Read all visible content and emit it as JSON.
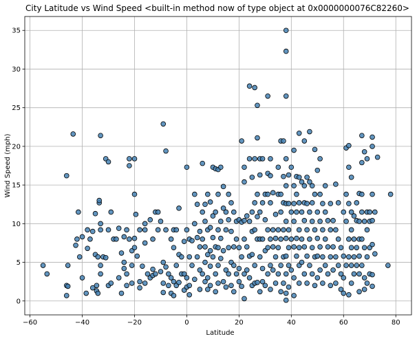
{
  "chart_data": {
    "type": "scatter",
    "title": "City Latitude vs Wind Speed <built-in method now of type object at 0x0000000076C82260>",
    "xlabel": "Latitude",
    "ylabel": "Wind Speed (mph)",
    "xlim": [
      -62,
      86
    ],
    "ylim": [
      -1.8,
      36.8
    ],
    "xticks": [
      -60,
      -40,
      -20,
      0,
      20,
      40,
      60,
      80
    ],
    "yticks": [
      0,
      5,
      10,
      15,
      20,
      25,
      30,
      35
    ],
    "grid": true,
    "marker_color": "#4682b4",
    "marker_edge_color": "#000000",
    "points": [
      [
        -55,
        4.6
      ],
      [
        -53.5,
        3.5
      ],
      [
        -46,
        16.2
      ],
      [
        -46,
        2
      ],
      [
        -45.5,
        4.6
      ],
      [
        -46,
        0.7
      ],
      [
        -45.5,
        1.9
      ],
      [
        -43.5,
        21.6
      ],
      [
        -42.5,
        7.2
      ],
      [
        -42,
        8
      ],
      [
        -41.5,
        11.5
      ],
      [
        -41,
        5.7
      ],
      [
        -40,
        8.3
      ],
      [
        -40,
        3
      ],
      [
        -38.5,
        1
      ],
      [
        -38,
        6.8
      ],
      [
        -38,
        9.2
      ],
      [
        -37,
        8
      ],
      [
        -36,
        1.7
      ],
      [
        -36,
        9
      ],
      [
        -35,
        11.3
      ],
      [
        -35,
        6
      ],
      [
        -34.5,
        2
      ],
      [
        -34.5,
        1.3
      ],
      [
        -34,
        5.7
      ],
      [
        -33.5,
        12.7
      ],
      [
        -33.5,
        13
      ],
      [
        -33,
        21.4
      ],
      [
        -33,
        9.2
      ],
      [
        -33,
        4.6
      ],
      [
        -33,
        3.5
      ],
      [
        -34,
        1
      ],
      [
        -33,
        10
      ],
      [
        -32,
        5.7
      ],
      [
        -31,
        5.6
      ],
      [
        -31,
        18.4
      ],
      [
        -30,
        18
      ],
      [
        -30,
        9.2
      ],
      [
        -30,
        2
      ],
      [
        -29,
        11.5
      ],
      [
        -29,
        2.3
      ],
      [
        -28,
        8
      ],
      [
        -27,
        8
      ],
      [
        -26,
        3
      ],
      [
        -26,
        9.4
      ],
      [
        -25,
        6.2
      ],
      [
        -25,
        1
      ],
      [
        -24,
        8.3
      ],
      [
        -24,
        5
      ],
      [
        -24,
        4.2
      ],
      [
        -23,
        9.2
      ],
      [
        -23,
        3.5
      ],
      [
        -23,
        2
      ],
      [
        -22,
        18.4
      ],
      [
        -22,
        17.5
      ],
      [
        -22,
        8
      ],
      [
        -21,
        4.6
      ],
      [
        -21,
        6.5
      ],
      [
        -21,
        2.3
      ],
      [
        -20,
        18.4
      ],
      [
        -20,
        13.8
      ],
      [
        -20,
        8.1
      ],
      [
        -20,
        6.9
      ],
      [
        -19.5,
        11.2
      ],
      [
        -19,
        5.8
      ],
      [
        -18,
        9.2
      ],
      [
        -18,
        2.5
      ],
      [
        -18,
        1.7
      ],
      [
        -17,
        4.5
      ],
      [
        -16,
        10
      ],
      [
        -16,
        9.2
      ],
      [
        -16,
        7.5
      ],
      [
        -16,
        2.3
      ],
      [
        -15,
        3.5
      ],
      [
        -14,
        10.5
      ],
      [
        -14,
        3
      ],
      [
        -13,
        8
      ],
      [
        -13,
        4.1
      ],
      [
        -13,
        3.3
      ],
      [
        -12,
        11.5
      ],
      [
        -12,
        3.5
      ],
      [
        -11,
        9.2
      ],
      [
        -11,
        11.5
      ],
      [
        -10,
        10.3
      ],
      [
        -10,
        3.8
      ],
      [
        -9,
        22.9
      ],
      [
        -9,
        5
      ],
      [
        -9,
        2.3
      ],
      [
        -9,
        1.1
      ],
      [
        -8,
        19.4
      ],
      [
        -8,
        9.2
      ],
      [
        -8,
        4.4
      ],
      [
        -7,
        3.5
      ],
      [
        -7,
        2
      ],
      [
        -6,
        8
      ],
      [
        -6,
        3
      ],
      [
        -6,
        1
      ],
      [
        -5,
        9.2
      ],
      [
        -5,
        6.9
      ],
      [
        -5,
        2.5
      ],
      [
        -5,
        0.7
      ],
      [
        -4,
        9.2
      ],
      [
        -4,
        4.6
      ],
      [
        -4,
        2
      ],
      [
        -3,
        12
      ],
      [
        -3,
        6
      ],
      [
        -3,
        2.4
      ],
      [
        -2,
        5.7
      ],
      [
        -2,
        3.5
      ],
      [
        -1,
        7.7
      ],
      [
        -1,
        3.5
      ],
      [
        -1,
        1.4
      ],
      [
        0,
        17.3
      ],
      [
        0,
        9.2
      ],
      [
        0,
        3
      ],
      [
        0,
        1.8
      ],
      [
        1,
        8
      ],
      [
        1,
        5.7
      ],
      [
        1,
        2
      ],
      [
        1,
        0.8
      ],
      [
        2,
        7.8
      ],
      [
        2,
        4.6
      ],
      [
        3,
        10
      ],
      [
        3,
        2.8
      ],
      [
        3,
        13.8
      ],
      [
        4,
        12.5
      ],
      [
        4,
        8.2
      ],
      [
        4,
        5.7
      ],
      [
        5,
        9
      ],
      [
        5,
        7
      ],
      [
        5,
        4
      ],
      [
        5,
        1.5
      ],
      [
        6,
        17.8
      ],
      [
        6,
        11.5
      ],
      [
        6,
        8
      ],
      [
        6,
        3.5
      ],
      [
        7,
        12.5
      ],
      [
        7,
        10.3
      ],
      [
        7,
        7
      ],
      [
        7,
        5
      ],
      [
        7,
        2.5
      ],
      [
        8,
        13.8
      ],
      [
        8,
        9.2
      ],
      [
        8,
        6
      ],
      [
        8,
        3
      ],
      [
        8,
        1.5
      ],
      [
        9,
        12.8
      ],
      [
        9,
        9.5
      ],
      [
        9,
        6.5
      ],
      [
        9,
        4.5
      ],
      [
        9,
        2
      ],
      [
        10,
        17.3
      ],
      [
        10,
        11
      ],
      [
        10,
        8.2
      ],
      [
        10,
        5.7
      ],
      [
        11,
        17.1
      ],
      [
        11,
        11.5
      ],
      [
        11,
        7
      ],
      [
        11,
        3.5
      ],
      [
        11,
        1.2
      ],
      [
        12,
        17
      ],
      [
        12,
        13.8
      ],
      [
        12,
        9.2
      ],
      [
        12,
        6.9
      ],
      [
        12,
        4.6
      ],
      [
        12,
        2.3
      ],
      [
        13,
        17.3
      ],
      [
        13,
        10.3
      ],
      [
        13,
        8.1
      ],
      [
        13,
        5.5
      ],
      [
        14,
        14.8
      ],
      [
        14,
        12
      ],
      [
        14,
        6.5
      ],
      [
        14,
        2.5
      ],
      [
        15,
        11.5
      ],
      [
        15,
        9.2
      ],
      [
        15,
        4
      ],
      [
        15,
        1.8
      ],
      [
        16,
        13.8
      ],
      [
        16,
        10.5
      ],
      [
        16,
        6.9
      ],
      [
        16,
        3.5
      ],
      [
        17,
        12.7
      ],
      [
        17,
        9
      ],
      [
        17,
        5
      ],
      [
        17,
        2
      ],
      [
        18,
        11.5
      ],
      [
        18,
        7
      ],
      [
        18,
        4.6
      ],
      [
        18,
        1.2
      ],
      [
        19,
        10.3
      ],
      [
        19,
        8
      ],
      [
        19,
        3.5
      ],
      [
        20,
        10.5
      ],
      [
        20,
        6.9
      ],
      [
        20,
        2.5
      ],
      [
        20,
        4.2
      ],
      [
        21,
        20.7
      ],
      [
        21,
        10.2
      ],
      [
        21,
        5.7
      ],
      [
        21,
        1.9
      ],
      [
        22,
        17.3
      ],
      [
        22,
        15.4
      ],
      [
        22,
        10.4
      ],
      [
        22,
        8
      ],
      [
        22,
        3.5
      ],
      [
        22,
        0.3
      ],
      [
        23,
        11
      ],
      [
        23,
        7
      ],
      [
        23,
        4
      ],
      [
        24,
        27.8
      ],
      [
        24,
        18.4
      ],
      [
        24,
        10.3
      ],
      [
        24,
        5.8
      ],
      [
        24,
        3
      ],
      [
        25,
        16
      ],
      [
        25,
        11.5
      ],
      [
        25,
        9
      ],
      [
        25,
        6
      ],
      [
        25,
        2
      ],
      [
        26,
        27.6
      ],
      [
        26,
        18.4
      ],
      [
        26,
        12.7
      ],
      [
        26,
        9.2
      ],
      [
        26,
        4.6
      ],
      [
        26,
        2.3
      ],
      [
        27,
        25.3
      ],
      [
        27,
        21.1
      ],
      [
        27,
        13.8
      ],
      [
        27,
        10.9
      ],
      [
        27,
        8
      ],
      [
        27,
        2.4
      ],
      [
        28,
        18.4
      ],
      [
        28,
        16.3
      ],
      [
        28,
        11.5
      ],
      [
        28,
        8
      ],
      [
        28,
        5.7
      ],
      [
        28,
        1.2
      ],
      [
        29,
        18.4
      ],
      [
        29,
        12.7
      ],
      [
        29,
        8
      ],
      [
        29,
        4.2
      ],
      [
        29,
        2.5
      ],
      [
        30,
        13.8
      ],
      [
        30,
        10.5
      ],
      [
        30,
        6.5
      ],
      [
        30,
        2
      ],
      [
        31,
        26.5
      ],
      [
        31,
        16.5
      ],
      [
        31,
        13.8
      ],
      [
        31,
        9.2
      ],
      [
        31,
        6.9
      ],
      [
        31,
        3.5
      ],
      [
        32,
        18.4
      ],
      [
        32,
        16.2
      ],
      [
        32,
        12.7
      ],
      [
        32,
        8
      ],
      [
        32,
        4.6
      ],
      [
        32,
        1.5
      ],
      [
        33,
        14
      ],
      [
        33,
        9.2
      ],
      [
        33,
        7
      ],
      [
        33,
        4
      ],
      [
        34,
        11.2
      ],
      [
        34,
        8.1
      ],
      [
        34,
        5.7
      ],
      [
        34,
        2.3
      ],
      [
        35,
        17.3
      ],
      [
        35,
        13.8
      ],
      [
        35,
        9.2
      ],
      [
        35,
        6.9
      ],
      [
        35,
        3.5
      ],
      [
        36,
        20.7
      ],
      [
        36,
        13.8
      ],
      [
        36,
        11.5
      ],
      [
        36,
        8
      ],
      [
        36,
        4.6
      ],
      [
        36,
        1.2
      ],
      [
        37,
        20.7
      ],
      [
        37,
        16.1
      ],
      [
        37,
        12.7
      ],
      [
        37,
        9.2
      ],
      [
        37,
        5.7
      ],
      [
        37,
        2.3
      ],
      [
        38,
        35
      ],
      [
        38,
        32.3
      ],
      [
        38,
        26.5
      ],
      [
        38,
        18.4
      ],
      [
        38,
        14.9
      ],
      [
        38,
        12.6
      ],
      [
        38,
        10.3
      ],
      [
        38,
        8.1
      ],
      [
        38,
        5.8
      ],
      [
        38,
        3.5
      ],
      [
        38,
        1
      ],
      [
        38,
        0.1
      ],
      [
        39,
        16.3
      ],
      [
        39,
        12.6
      ],
      [
        39,
        9.2
      ],
      [
        39,
        6.9
      ],
      [
        39,
        4.6
      ],
      [
        39,
        1.8
      ],
      [
        40,
        17.3
      ],
      [
        40,
        11.5
      ],
      [
        40,
        8
      ],
      [
        40,
        4
      ],
      [
        41,
        19.5
      ],
      [
        41,
        14.9
      ],
      [
        41,
        12.6
      ],
      [
        41,
        10.3
      ],
      [
        41,
        7
      ],
      [
        41,
        3
      ],
      [
        41,
        0.7
      ],
      [
        42,
        16.1
      ],
      [
        42,
        13.8
      ],
      [
        42,
        11.5
      ],
      [
        42,
        8.1
      ],
      [
        42,
        5.8
      ],
      [
        43,
        21.7
      ],
      [
        43,
        16
      ],
      [
        43,
        12.7
      ],
      [
        43,
        9.2
      ],
      [
        43,
        6.9
      ],
      [
        43,
        4.6
      ],
      [
        43,
        2.3
      ],
      [
        44,
        15.4
      ],
      [
        44,
        11.5
      ],
      [
        44,
        8
      ],
      [
        44,
        5
      ],
      [
        45,
        20.7
      ],
      [
        45,
        14.9
      ],
      [
        45,
        12.7
      ],
      [
        45,
        10.4
      ],
      [
        45,
        7
      ],
      [
        45,
        3.5
      ],
      [
        46,
        16
      ],
      [
        46,
        12.6
      ],
      [
        46,
        9.2
      ],
      [
        46,
        5.8
      ],
      [
        46,
        2.3
      ],
      [
        47,
        21.9
      ],
      [
        47,
        15.4
      ],
      [
        47,
        11.5
      ],
      [
        47,
        8
      ],
      [
        47,
        4.6
      ],
      [
        48,
        14.9
      ],
      [
        48,
        12.7
      ],
      [
        48,
        10.3
      ],
      [
        48,
        6.9
      ],
      [
        48,
        3.5
      ],
      [
        49,
        19.6
      ],
      [
        49,
        13.8
      ],
      [
        49,
        9.2
      ],
      [
        49,
        5.7
      ],
      [
        49,
        2
      ],
      [
        50,
        16.9
      ],
      [
        50,
        11.5
      ],
      [
        50,
        8.1
      ],
      [
        50,
        5.8
      ],
      [
        50,
        3
      ],
      [
        51,
        18.4
      ],
      [
        51,
        13.8
      ],
      [
        51,
        10.3
      ],
      [
        51,
        7
      ],
      [
        51,
        4
      ],
      [
        52,
        12.6
      ],
      [
        52,
        9.2
      ],
      [
        52,
        5.7
      ],
      [
        52,
        2.3
      ],
      [
        53,
        14.9
      ],
      [
        53,
        11.5
      ],
      [
        53,
        8
      ],
      [
        53,
        4.6
      ],
      [
        54,
        10.4
      ],
      [
        54,
        7
      ],
      [
        54,
        3.5
      ],
      [
        55,
        12.6
      ],
      [
        55,
        9.2
      ],
      [
        55,
        5.7
      ],
      [
        55,
        2
      ],
      [
        56,
        10.4
      ],
      [
        56,
        7
      ],
      [
        56,
        4
      ],
      [
        57,
        15.1
      ],
      [
        57,
        9.2
      ],
      [
        57,
        5.7
      ],
      [
        57,
        2.3
      ],
      [
        58,
        12.7
      ],
      [
        58,
        8
      ],
      [
        58,
        4.6
      ],
      [
        59,
        6.9
      ],
      [
        59,
        3.5
      ],
      [
        59,
        1.5
      ],
      [
        60,
        11.5
      ],
      [
        60,
        5.8
      ],
      [
        60,
        3
      ],
      [
        60,
        1
      ],
      [
        61,
        19.8
      ],
      [
        61,
        13.8
      ],
      [
        61,
        10.3
      ],
      [
        61,
        4.6
      ],
      [
        62,
        20.1
      ],
      [
        62,
        17.3
      ],
      [
        62,
        12.6
      ],
      [
        62,
        8
      ],
      [
        62,
        5.7
      ],
      [
        62,
        0.8
      ],
      [
        63,
        16
      ],
      [
        63,
        11.5
      ],
      [
        63,
        9.2
      ],
      [
        63,
        6.9
      ],
      [
        63,
        4.6
      ],
      [
        63,
        2.3
      ],
      [
        64,
        11
      ],
      [
        64,
        8
      ],
      [
        64,
        5.7
      ],
      [
        64,
        3.5
      ],
      [
        65,
        12.7
      ],
      [
        65,
        10.4
      ],
      [
        65,
        6.9
      ],
      [
        65,
        4.6
      ],
      [
        66,
        13.9
      ],
      [
        66,
        10.3
      ],
      [
        66,
        8
      ],
      [
        66,
        5.8
      ],
      [
        66,
        3.5
      ],
      [
        66,
        1.2
      ],
      [
        67,
        21.4
      ],
      [
        67,
        17.9
      ],
      [
        67,
        13.8
      ],
      [
        67,
        11.5
      ],
      [
        67,
        8
      ],
      [
        67,
        4.6
      ],
      [
        68,
        19.3
      ],
      [
        68,
        10.3
      ],
      [
        68,
        6.9
      ],
      [
        68,
        3
      ],
      [
        68,
        1.5
      ],
      [
        69,
        18.4
      ],
      [
        69,
        11.5
      ],
      [
        69,
        9.2
      ],
      [
        69,
        5.7
      ],
      [
        69,
        2.3
      ],
      [
        70,
        11.5
      ],
      [
        70,
        10.3
      ],
      [
        70,
        6.9
      ],
      [
        70,
        3.5
      ],
      [
        71,
        21.2
      ],
      [
        71,
        20
      ],
      [
        71,
        13.8
      ],
      [
        71,
        10.4
      ],
      [
        71,
        7.3
      ],
      [
        71,
        3.4
      ],
      [
        71,
        1.9
      ],
      [
        72,
        11.5
      ],
      [
        72,
        6.1
      ],
      [
        73,
        18.6
      ],
      [
        77,
        4.6
      ],
      [
        78,
        13.8
      ]
    ]
  }
}
